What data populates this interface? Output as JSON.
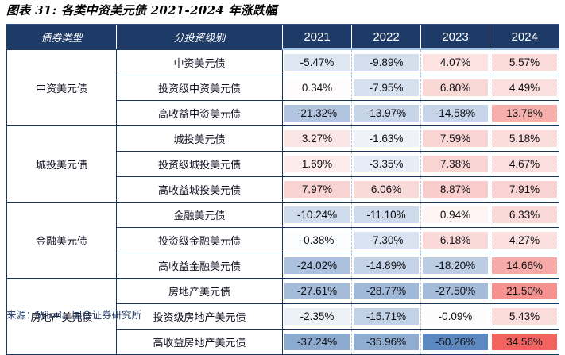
{
  "figure": {
    "title": "图表 31: 各类中资美元债 2021-2024 年涨跌幅",
    "source_note": "来源：Wind，国金证券研究所"
  },
  "colors": {
    "header_bg": "#1E3A66",
    "header_text": "#FFFFFF",
    "grid_navy": "#17375E",
    "header_underline_blue": "#9DC3E6",
    "negative_scale_max": "#5C88C1",
    "positive_scale_max": "#F2635F"
  },
  "chart_data": {
    "type": "table",
    "title": "图表 31: 各类中资美元债 2021-2024 年涨跌幅",
    "columns": [
      "债券类型",
      "分投资级别",
      "2021",
      "2022",
      "2023",
      "2024"
    ],
    "unit": "%",
    "color_scale": "diverging: blue = negative, white = zero, red = positive",
    "source": "Wind, 国金证券研究所",
    "groups": [
      {
        "name": "中资美元债",
        "rows": [
          {
            "label": "中资美元债",
            "values": [
              -5.47,
              -9.89,
              4.07,
              5.57
            ],
            "display": [
              "-5.47%",
              "-9.89%",
              "4.07%",
              "5.57%"
            ],
            "colors": [
              "#DEE7F2",
              "#D4DFEE",
              "#FCE2E1",
              "#FBDCDB"
            ]
          },
          {
            "label": "投资级中资美元债",
            "values": [
              0.34,
              -7.95,
              6.8,
              4.49
            ],
            "display": [
              "0.34%",
              "-7.95%",
              "6.80%",
              "4.49%"
            ],
            "colors": [
              "#FEFCFC",
              "#D6E1EF",
              "#FAD8D6",
              "#FBDFDE"
            ]
          },
          {
            "label": "高收益中资美元债",
            "values": [
              -21.32,
              -13.97,
              -14.58,
              13.78
            ],
            "display": [
              "-21.32%",
              "-13.97%",
              "-14.58%",
              "13.78%"
            ],
            "colors": [
              "#B2C5E0",
              "#C7D5E9",
              "#C5D4E8",
              "#F7AFAC"
            ]
          }
        ]
      },
      {
        "name": "城投美元债",
        "rows": [
          {
            "label": "城投美元债",
            "values": [
              3.27,
              -1.63,
              7.59,
              5.18
            ],
            "display": [
              "3.27%",
              "-1.63%",
              "7.59%",
              "5.18%"
            ],
            "colors": [
              "#FCE6E5",
              "#EFF3F9",
              "#F9D5D3",
              "#FBDDDC"
            ]
          },
          {
            "label": "投资级城投美元债",
            "values": [
              1.69,
              -3.35,
              7.38,
              4.67
            ],
            "display": [
              "1.69%",
              "-3.35%",
              "7.38%",
              "4.67%"
            ],
            "colors": [
              "#FDECEB",
              "#E7EDF6",
              "#F9D6D4",
              "#FBDEDD"
            ]
          },
          {
            "label": "高收益城投美元债",
            "values": [
              7.97,
              6.06,
              8.87,
              7.91
            ],
            "display": [
              "7.97%",
              "6.06%",
              "8.87%",
              "7.91%"
            ],
            "colors": [
              "#F9D3D1",
              "#FADAD9",
              "#F8CDCB",
              "#F9D3D1"
            ]
          }
        ]
      },
      {
        "name": "金融美元债",
        "rows": [
          {
            "label": "金融美元债",
            "values": [
              -10.24,
              -11.1,
              0.94,
              6.33
            ],
            "display": [
              "-10.24%",
              "-11.10%",
              "0.94%",
              "6.33%"
            ],
            "colors": [
              "#CFDCEC",
              "#CDDAEB",
              "#FEF5F4",
              "#FAD9D8"
            ]
          },
          {
            "label": "投资级金融美元债",
            "values": [
              -0.38,
              -7.3,
              6.18,
              4.27
            ],
            "display": [
              "-0.38%",
              "-7.30%",
              "6.18%",
              "4.27%"
            ],
            "colors": [
              "#FBFCFE",
              "#D8E2F0",
              "#FAD9D8",
              "#FBE0DF"
            ]
          },
          {
            "label": "高收益金融美元债",
            "values": [
              -24.02,
              -14.89,
              -18.2,
              14.66
            ],
            "display": [
              "-24.02%",
              "-14.89%",
              "-18.20%",
              "14.66%"
            ],
            "colors": [
              "#ACC1DD",
              "#C4D3E7",
              "#BBCCE3",
              "#F7ABA8"
            ]
          }
        ]
      },
      {
        "name": "房地产美元债",
        "rows": [
          {
            "label": "房地产美元债",
            "values": [
              -27.61,
              -28.77,
              -27.5,
              21.5
            ],
            "display": [
              "-27.61%",
              "-28.77%",
              "-27.50%",
              "21.50%"
            ],
            "colors": [
              "#A4BBDA",
              "#A1B9D9",
              "#A4BBDA",
              "#F5918E"
            ]
          },
          {
            "label": "投资级房地产美元债",
            "values": [
              -2.35,
              -15.71,
              -0.09,
              5.43
            ],
            "display": [
              "-2.35%",
              "-15.71%",
              "-0.09%",
              "5.43%"
            ],
            "colors": [
              "#ECF1F8",
              "#C1D1E6",
              "#FDFDFE",
              "#FBDDDC"
            ]
          },
          {
            "label": "高收益房地产美元债",
            "values": [
              -37.24,
              -35.96,
              -50.26,
              34.56
            ],
            "display": [
              "-37.24%",
              "-35.96%",
              "-50.26%",
              "34.56%"
            ],
            "colors": [
              "#8CAACF",
              "#8FACD1",
              "#5C88C1",
              "#F2635F"
            ]
          }
        ]
      }
    ]
  }
}
